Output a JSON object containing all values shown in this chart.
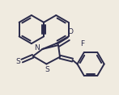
{
  "bg_color": "#f0ebe0",
  "line_color": "#2a2a4a",
  "line_width": 1.4,
  "figsize": [
    1.47,
    1.18
  ],
  "dpi": 100,
  "xlim": [
    0,
    147
  ],
  "ylim": [
    0,
    118
  ]
}
